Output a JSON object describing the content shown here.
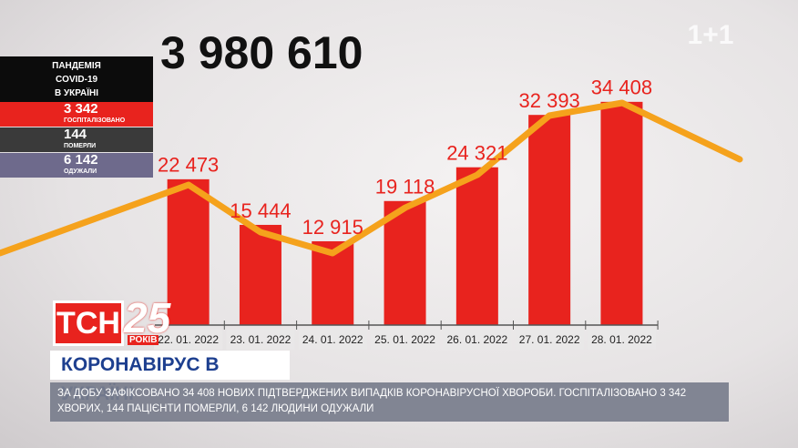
{
  "chart_data": {
    "type": "bar",
    "categories": [
      "22. 01. 2022",
      "23. 01. 2022",
      "24. 01. 2022",
      "25. 01. 2022",
      "26. 01. 2022",
      "27. 01. 2022",
      "28. 01. 2022"
    ],
    "values": [
      22473,
      15444,
      12915,
      19118,
      24321,
      32393,
      34408
    ],
    "value_labels": [
      "22 473",
      "15 444",
      "12 915",
      "19 118",
      "24 321",
      "32 393",
      "34 408"
    ],
    "color": "#e8231e",
    "ylim": [
      0,
      40000
    ]
  },
  "total": "3 980 610",
  "panel": {
    "title": [
      "ПАНДЕМІЯ",
      "COVID-19",
      "В УКРАЇНІ"
    ],
    "stats": [
      {
        "value": "3 342",
        "label": "ГОСПІТАЛІЗОВАНО"
      },
      {
        "value": "144",
        "label": "ПОМЕРЛИ"
      },
      {
        "value": "6 142",
        "label": "ОДУЖАЛИ"
      }
    ]
  },
  "logo": {
    "channel": "ТСН",
    "anniversary": "25",
    "years": "РОКІВ"
  },
  "corner_logo": "1+1",
  "headline": "КОРОНАВІРУС В УКРАЇНІ",
  "ticker": "ЗА ДОБУ ЗАФІКСОВАНО 34 408 НОВИХ ПІДТВЕРДЖЕНИХ ВИПАДКІВ КОРОНАВІРУСНОЇ ХВОРОБИ. ГОСПІТАЛІЗОВАНО 3 342 ХВОРИХ, 144 ПАЦІЄНТИ ПОМЕРЛИ, 6 142 ЛЮДИНИ ОДУЖАЛИ"
}
